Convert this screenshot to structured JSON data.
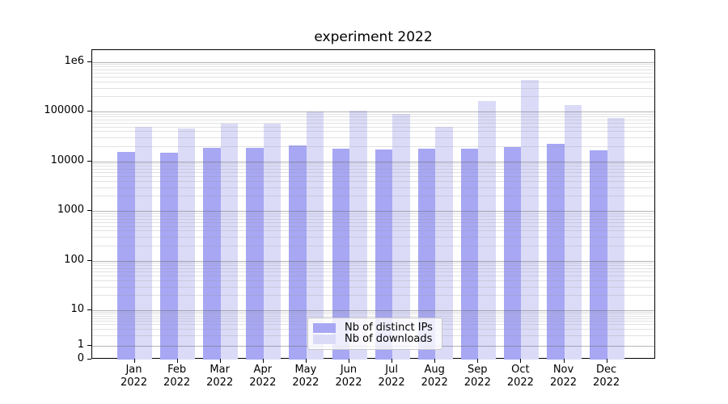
{
  "chart_data": {
    "type": "bar",
    "title": "experiment 2022",
    "categories": [
      "Jan 2022",
      "Feb 2022",
      "Mar 2022",
      "Apr 2022",
      "May 2022",
      "Jun 2022",
      "Jul 2022",
      "Aug 2022",
      "Sep 2022",
      "Oct 2022",
      "Nov 2022",
      "Dec 2022"
    ],
    "series": [
      {
        "name": "Nb of distinct IPs",
        "color": "#a7a7f4",
        "values": [
          15500,
          15000,
          18500,
          18500,
          21000,
          18200,
          17000,
          18000,
          18000,
          19500,
          22500,
          16500
        ]
      },
      {
        "name": "Nb of downloads",
        "color": "#dbdbf8",
        "values": [
          49000,
          45000,
          57000,
          57000,
          99000,
          104000,
          90000,
          49000,
          163000,
          430000,
          137000,
          74000
        ]
      }
    ],
    "yscale": "symlog",
    "ylim": [
      0,
      2000000
    ],
    "ytick_labels": [
      "1e6",
      "100000",
      "10000",
      "1000",
      "100",
      "10",
      "1",
      "0"
    ],
    "ytick_values": [
      1000000,
      100000,
      10000,
      1000,
      100,
      10,
      1,
      0
    ],
    "grid": "horizontal major and minor, drawn over bars",
    "legend_position": "lower center"
  }
}
